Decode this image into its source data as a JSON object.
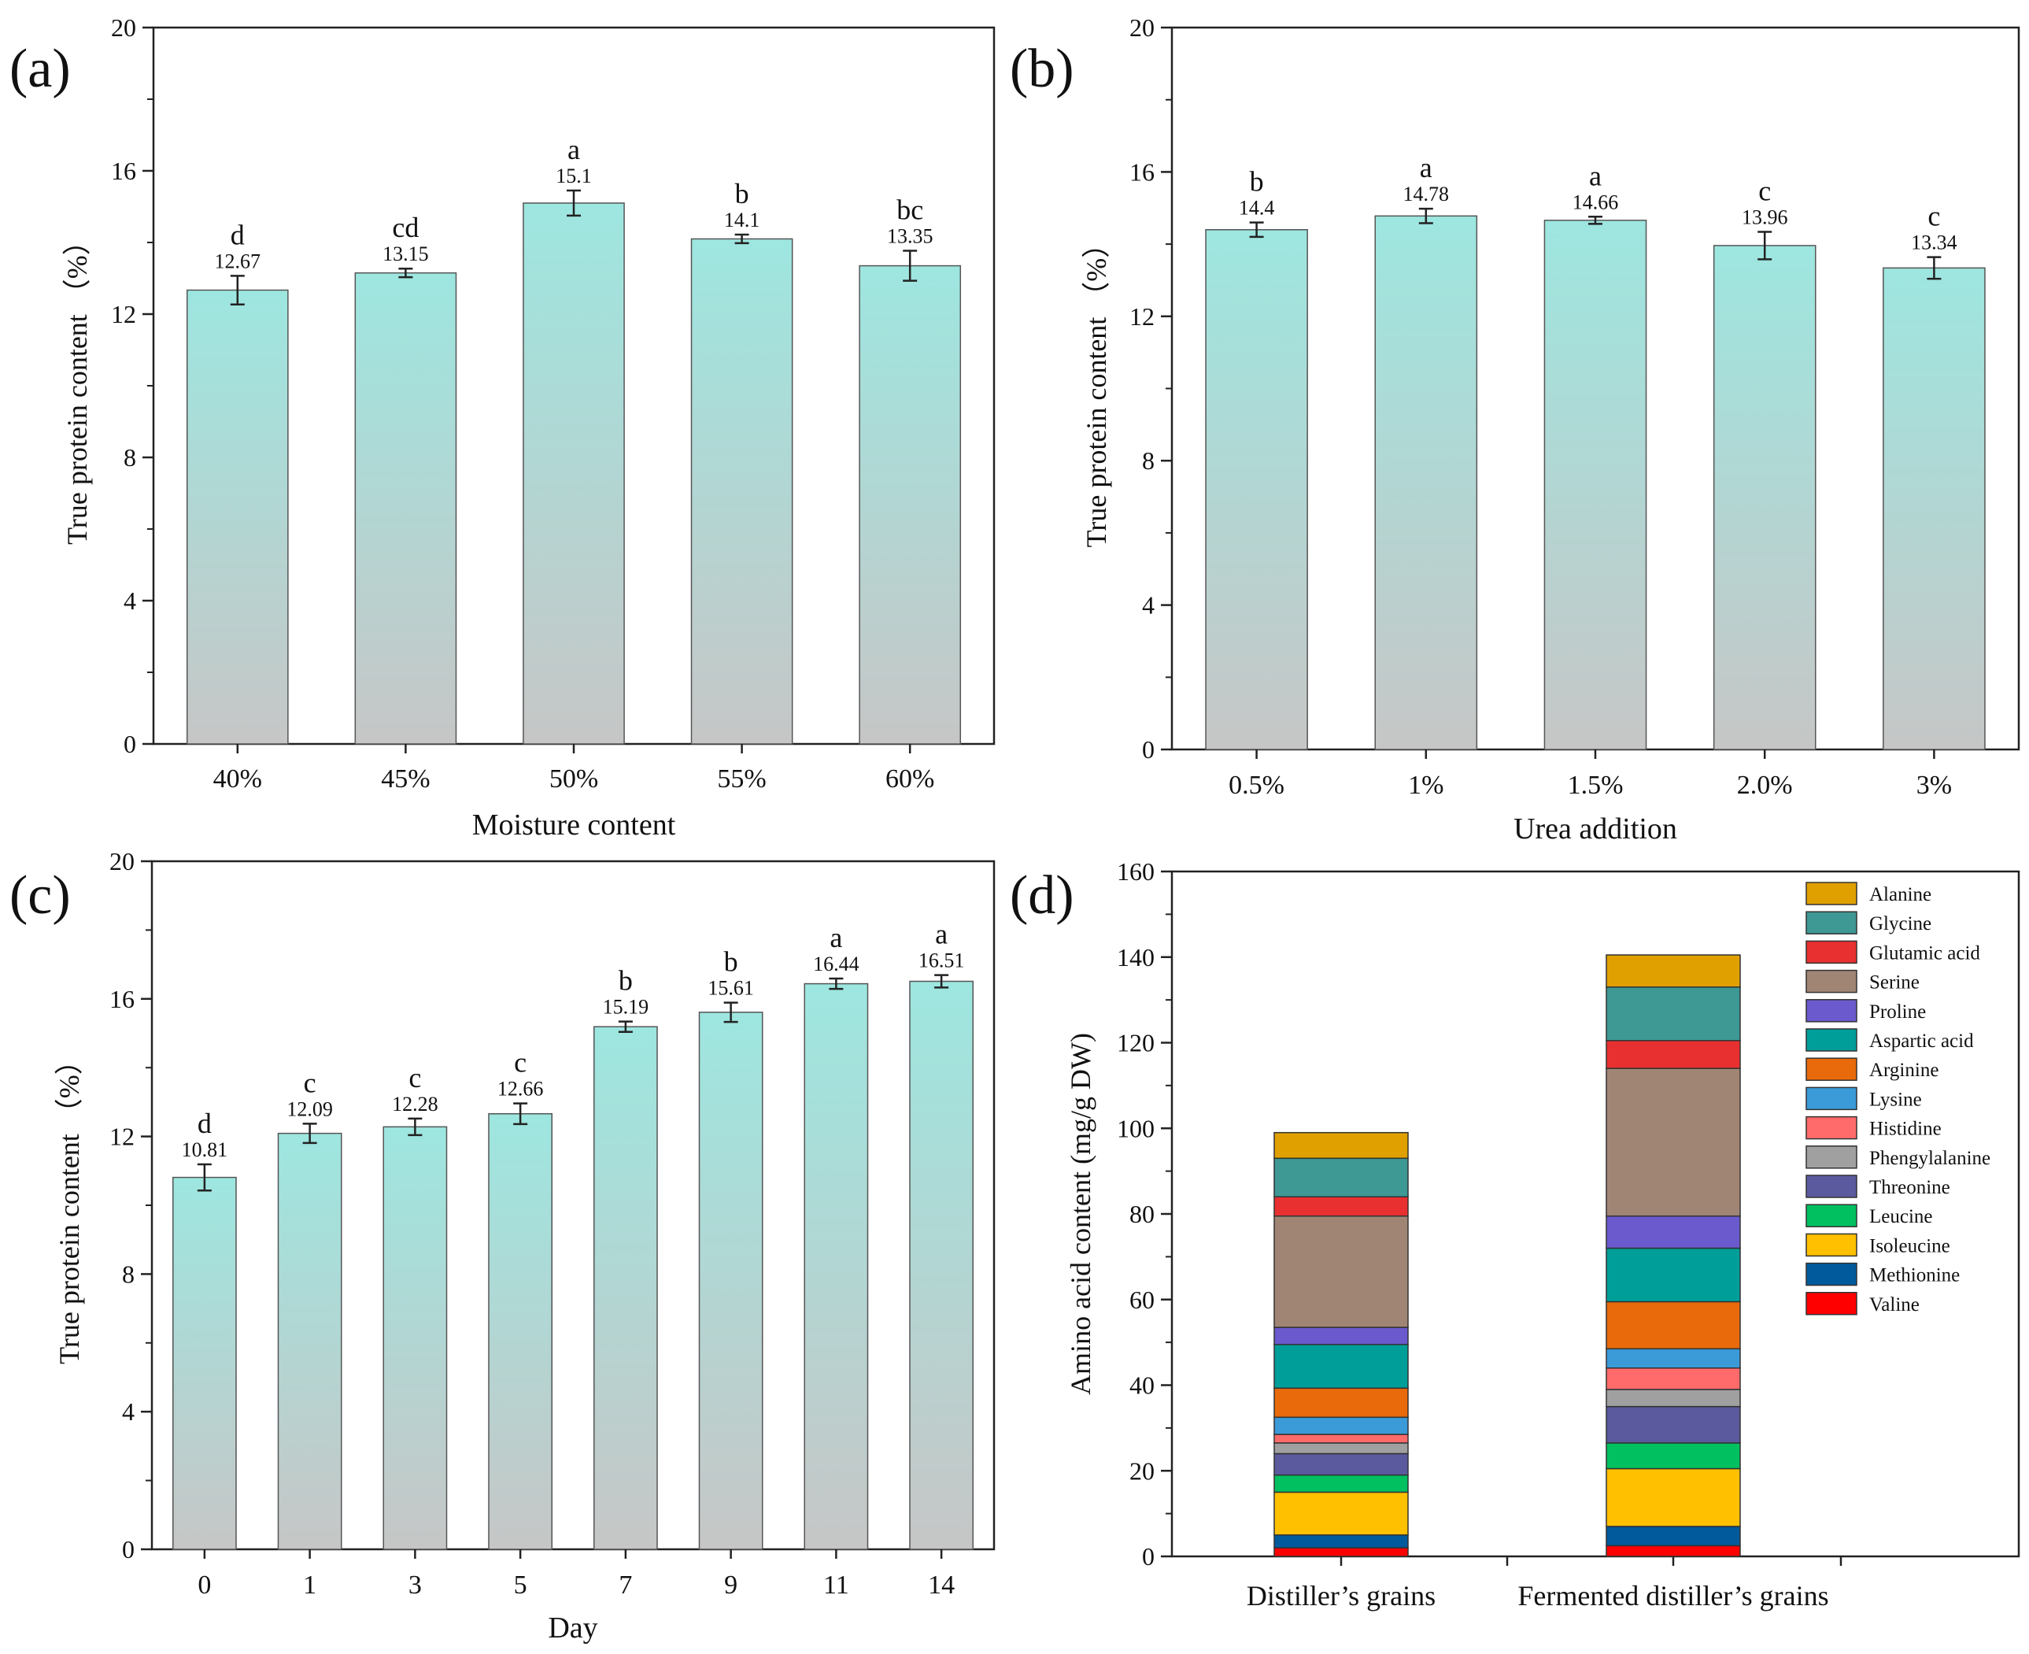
{
  "colors": {
    "bar_top": "#9ee6e0",
    "bar_bottom": "#c6c6c6",
    "axis": "#222222",
    "errorbar": "#222222"
  },
  "chart_data": [
    {
      "panel_label": "(a)",
      "type": "bar",
      "xlabel": "Moisture content",
      "ylabel": "True protein content （%）",
      "ylim": [
        0,
        20
      ],
      "yticks": [
        "0",
        "4",
        "8",
        "12",
        "16",
        "20"
      ],
      "categories": [
        "40%",
        "45%",
        "50%",
        "55%",
        "60%"
      ],
      "values": [
        12.67,
        13.15,
        15.1,
        14.1,
        13.35
      ],
      "value_labels": [
        "12.67",
        "13.15",
        "15.1",
        "14.1",
        "13.35"
      ],
      "errors": [
        0.4,
        0.12,
        0.35,
        0.12,
        0.42
      ],
      "letters": [
        "d",
        "cd",
        "a",
        "b",
        "bc"
      ]
    },
    {
      "panel_label": "(b)",
      "type": "bar",
      "xlabel": "Urea addition",
      "ylabel": "True protein content （%）",
      "ylim": [
        0,
        20
      ],
      "yticks": [
        "0",
        "4",
        "8",
        "12",
        "16",
        "20"
      ],
      "categories": [
        "0.5%",
        "1%",
        "1.5%",
        "2.0%",
        "3%"
      ],
      "values": [
        14.4,
        14.78,
        14.66,
        13.96,
        13.34
      ],
      "value_labels": [
        "14.4",
        "14.78",
        "14.66",
        "13.96",
        "13.34"
      ],
      "errors": [
        0.2,
        0.2,
        0.1,
        0.38,
        0.3
      ],
      "letters": [
        "b",
        "a",
        "a",
        "c",
        "c"
      ]
    },
    {
      "panel_label": "(c)",
      "type": "bar",
      "xlabel": "Day",
      "ylabel": "True protein content （%）",
      "ylim": [
        0,
        20
      ],
      "yticks": [
        "0",
        "4",
        "8",
        "12",
        "16",
        "20"
      ],
      "categories": [
        "0",
        "1",
        "3",
        "5",
        "7",
        "9",
        "11",
        "14"
      ],
      "values": [
        10.81,
        12.09,
        12.28,
        12.66,
        15.19,
        15.61,
        16.44,
        16.51
      ],
      "value_labels": [
        "10.81",
        "12.09",
        "12.28",
        "12.66",
        "15.19",
        "15.61",
        "16.44",
        "16.51"
      ],
      "errors": [
        0.38,
        0.28,
        0.24,
        0.3,
        0.15,
        0.28,
        0.15,
        0.18
      ],
      "letters": [
        "d",
        "c",
        "c",
        "c",
        "b",
        "b",
        "a",
        "a"
      ]
    },
    {
      "panel_label": "(d)",
      "type": "bar",
      "stacked": true,
      "xlabel": "",
      "ylabel": "Amino acid content (mg/g DW)",
      "ylim": [
        0,
        160
      ],
      "yticks": [
        "0",
        "20",
        "40",
        "60",
        "80",
        "100",
        "120",
        "140",
        "160"
      ],
      "categories": [
        "Distiller’s grains",
        "Fermented distiller’s grains"
      ],
      "series": [
        {
          "name": "Valine",
          "color": "#ff0000",
          "values": [
            2.0,
            2.5
          ]
        },
        {
          "name": "Methionine",
          "color": "#005a9c",
          "values": [
            3.0,
            4.5
          ]
        },
        {
          "name": "Isoleucine",
          "color": "#ffc000",
          "values": [
            10.0,
            13.5
          ]
        },
        {
          "name": "Leucine",
          "color": "#00c060",
          "values": [
            4.0,
            6.0
          ]
        },
        {
          "name": "Threonine",
          "color": "#5b5a9e",
          "values": [
            5.0,
            8.5
          ]
        },
        {
          "name": "Phengylalanine",
          "color": "#a0a0a0",
          "values": [
            2.5,
            4.0
          ]
        },
        {
          "name": "Histidine",
          "color": "#ff6b6b",
          "values": [
            2.0,
            5.0
          ]
        },
        {
          "name": "Lysine",
          "color": "#3b9ad8",
          "values": [
            4.0,
            4.5
          ]
        },
        {
          "name": "Arginine",
          "color": "#e96a0a",
          "values": [
            6.8,
            11.0
          ]
        },
        {
          "name": "Aspartic acid",
          "color": "#009e99",
          "values": [
            10.2,
            12.5
          ]
        },
        {
          "name": "Proline",
          "color": "#6a5acd",
          "values": [
            4.0,
            7.5
          ]
        },
        {
          "name": "Serine",
          "color": "#a08575",
          "values": [
            26.0,
            34.5
          ]
        },
        {
          "name": "Glutamic acid",
          "color": "#e83030",
          "values": [
            4.5,
            6.5
          ]
        },
        {
          "name": "Glycine",
          "color": "#3e9894",
          "values": [
            9.0,
            12.5
          ]
        },
        {
          "name": "Alanine",
          "color": "#e0a000",
          "values": [
            6.0,
            7.5
          ]
        }
      ],
      "legend_order": [
        "Alanine",
        "Glycine",
        "Glutamic acid",
        "Serine",
        "Proline",
        "Aspartic acid",
        "Arginine",
        "Lysine",
        "Histidine",
        "Phengylalanine",
        "Threonine",
        "Leucine",
        "Isoleucine",
        "Methionine",
        "Valine"
      ],
      "legend_position": "top-right"
    }
  ]
}
